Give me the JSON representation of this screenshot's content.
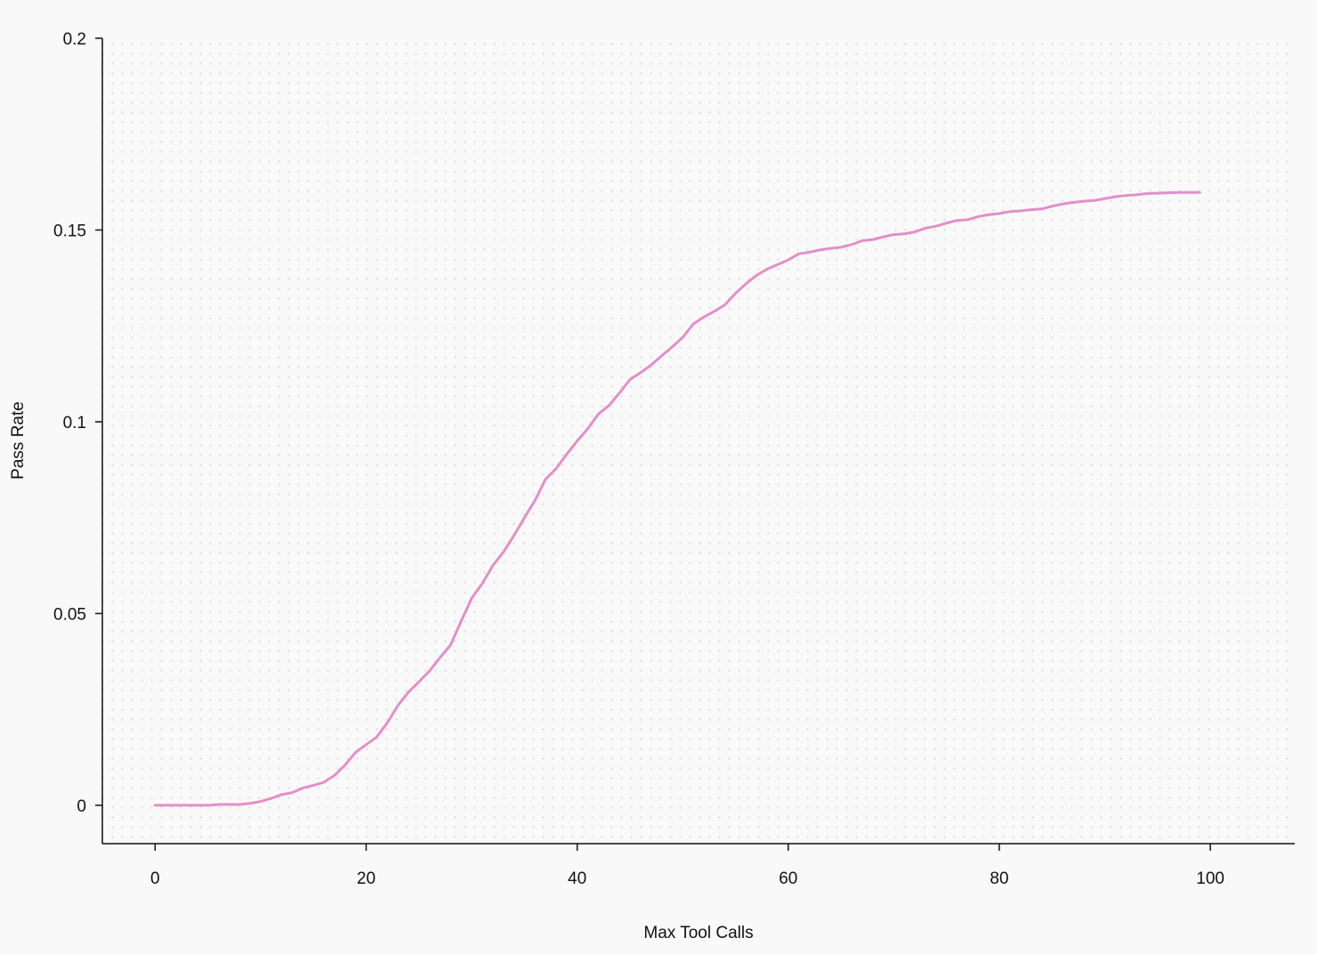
{
  "chart_data": {
    "type": "line",
    "title": "",
    "xlabel": "Max Tool Calls",
    "ylabel": "Pass Rate",
    "xlim": [
      -5,
      108
    ],
    "ylim": [
      -0.01,
      0.2
    ],
    "x_ticks": [
      0,
      20,
      40,
      60,
      80,
      100
    ],
    "x_tick_labels": [
      "0",
      "20",
      "40",
      "60",
      "80",
      "100"
    ],
    "y_ticks": [
      0,
      0.05,
      0.1,
      0.15,
      0.2
    ],
    "y_tick_labels": [
      "0",
      "0.05",
      "0.1",
      "0.15",
      "0.2"
    ],
    "grid": false,
    "background_pattern": "dots",
    "series": [
      {
        "color": "#e38fc8",
        "x": [
          0,
          1,
          2,
          3,
          4,
          5,
          6,
          7,
          8,
          9,
          10,
          11,
          12,
          13,
          14,
          15,
          16,
          17,
          18,
          19,
          20,
          21,
          22,
          23,
          24,
          25,
          26,
          27,
          28,
          29,
          30,
          31,
          32,
          33,
          34,
          35,
          36,
          37,
          38,
          39,
          40,
          41,
          42,
          43,
          44,
          45,
          46,
          47,
          48,
          49,
          50,
          51,
          52,
          53,
          54,
          55,
          56,
          57,
          58,
          59,
          60,
          61,
          62,
          63,
          64,
          65,
          66,
          67,
          68,
          69,
          70,
          71,
          72,
          73,
          74,
          75,
          76,
          77,
          78,
          79,
          80,
          81,
          82,
          83,
          84,
          85,
          86,
          87,
          88,
          89,
          90,
          91,
          92,
          93,
          94,
          95,
          96,
          97,
          98,
          99
        ],
        "values": [
          0,
          0,
          0,
          0,
          0,
          0,
          0.0002,
          0.0002,
          0.0002,
          0.0005,
          0.001,
          0.0018,
          0.0028,
          0.0033,
          0.0045,
          0.0052,
          0.006,
          0.0078,
          0.0105,
          0.0138,
          0.0158,
          0.0178,
          0.0215,
          0.026,
          0.0295,
          0.0322,
          0.035,
          0.0385,
          0.0418,
          0.048,
          0.054,
          0.0578,
          0.0625,
          0.066,
          0.0703,
          0.075,
          0.0795,
          0.085,
          0.0878,
          0.0915,
          0.095,
          0.0982,
          0.102,
          0.1042,
          0.1075,
          0.111,
          0.1128,
          0.1148,
          0.1172,
          0.1195,
          0.122,
          0.1255,
          0.1273,
          0.1288,
          0.1305,
          0.1335,
          0.136,
          0.1382,
          0.1398,
          0.141,
          0.1422,
          0.1438,
          0.1442,
          0.1448,
          0.1452,
          0.1455,
          0.1462,
          0.1472,
          0.1475,
          0.1482,
          0.1488,
          0.149,
          0.1495,
          0.1505,
          0.151,
          0.1518,
          0.1525,
          0.1527,
          0.1535,
          0.154,
          0.1543,
          0.1548,
          0.155,
          0.1553,
          0.1555,
          0.1562,
          0.1568,
          0.1572,
          0.1575,
          0.1577,
          0.1582,
          0.1587,
          0.159,
          0.1592,
          0.1595,
          0.1596,
          0.1597,
          0.1598,
          0.1598,
          0.1598
        ]
      }
    ]
  }
}
